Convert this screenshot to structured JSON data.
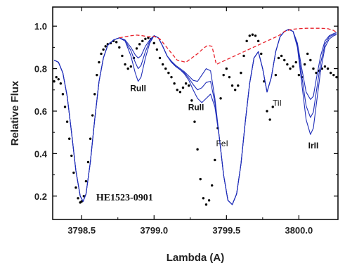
{
  "chart_data": {
    "type": "line",
    "title": "",
    "xlabel": "Lambda (A)",
    "ylabel": "Relative Flux",
    "xlim": [
      3798.3,
      3800.27
    ],
    "ylim": [
      0.09,
      1.09
    ],
    "x_ticks": [
      {
        "value": 3798.5,
        "label": "3798.5"
      },
      {
        "value": 3799.0,
        "label": "3799.0"
      },
      {
        "value": 3799.5,
        "label": "3799.5"
      },
      {
        "value": 3800.0,
        "label": "3800.0"
      }
    ],
    "y_ticks": [
      {
        "value": 0.2,
        "label": "0.2"
      },
      {
        "value": 0.4,
        "label": "0.4"
      },
      {
        "value": 0.6,
        "label": "0.6"
      },
      {
        "value": 0.8,
        "label": "0.8"
      },
      {
        "value": 1.0,
        "label": "1.0"
      }
    ],
    "grid": false,
    "star_label": {
      "text": "HE1523-0901",
      "x": 3798.6,
      "y": 0.18
    },
    "annotations": [
      {
        "text": "RuII",
        "x": 3798.89,
        "y": 0.695,
        "style": "bold"
      },
      {
        "text": "RuII",
        "x": 3799.29,
        "y": 0.605,
        "style": "bold"
      },
      {
        "text": "FeI",
        "x": 3799.47,
        "y": 0.435,
        "style": "plain"
      },
      {
        "text": "TiI",
        "x": 3799.85,
        "y": 0.625,
        "style": "plain"
      },
      {
        "text": "IrII",
        "x": 3800.1,
        "y": 0.425,
        "style": "bold"
      }
    ],
    "series": [
      {
        "style": "dots",
        "color": "#000000",
        "x": [
          3798.31,
          3798.325,
          3798.34,
          3798.355,
          3798.37,
          3798.385,
          3798.4,
          3798.415,
          3798.43,
          3798.445,
          3798.46,
          3798.475,
          3798.49,
          3798.5,
          3798.515,
          3798.53,
          3798.545,
          3798.56,
          3798.575,
          3798.59,
          3798.605,
          3798.62,
          3798.635,
          3798.65,
          3798.665,
          3798.68,
          3798.7,
          3798.72,
          3798.74,
          3798.76,
          3798.78,
          3798.8,
          3798.82,
          3798.84,
          3798.86,
          3798.88,
          3798.9,
          3798.92,
          3798.94,
          3798.96,
          3798.98,
          3799.0,
          3799.02,
          3799.04,
          3799.06,
          3799.08,
          3799.1,
          3799.12,
          3799.14,
          3799.16,
          3799.18,
          3799.2,
          3799.22,
          3799.24,
          3799.26,
          3799.28,
          3799.3,
          3799.32,
          3799.34,
          3799.36,
          3799.38,
          3799.4,
          3799.42,
          3799.44,
          3799.46,
          3799.48,
          3799.5,
          3799.52,
          3799.54,
          3799.56,
          3799.58,
          3799.6,
          3799.62,
          3799.64,
          3799.66,
          3799.68,
          3799.7,
          3799.72,
          3799.74,
          3799.76,
          3799.78,
          3799.8,
          3799.82,
          3799.84,
          3799.86,
          3799.88,
          3799.9,
          3799.92,
          3799.94,
          3799.96,
          3799.98,
          3800.0,
          3800.02,
          3800.04,
          3800.06,
          3800.08,
          3800.1,
          3800.12,
          3800.14,
          3800.16,
          3800.18,
          3800.2,
          3800.22,
          3800.24,
          3800.26
        ],
        "y": [
          0.74,
          0.76,
          0.75,
          0.73,
          0.68,
          0.62,
          0.55,
          0.47,
          0.39,
          0.31,
          0.24,
          0.19,
          0.17,
          0.175,
          0.2,
          0.27,
          0.36,
          0.47,
          0.58,
          0.68,
          0.77,
          0.83,
          0.87,
          0.89,
          0.905,
          0.915,
          0.92,
          0.93,
          0.925,
          0.9,
          0.86,
          0.82,
          0.8,
          0.81,
          0.85,
          0.895,
          0.915,
          0.93,
          0.94,
          0.945,
          0.94,
          0.92,
          0.89,
          0.85,
          0.82,
          0.8,
          0.78,
          0.76,
          0.73,
          0.7,
          0.69,
          0.71,
          0.73,
          0.72,
          0.65,
          0.55,
          0.42,
          0.28,
          0.19,
          0.16,
          0.18,
          0.25,
          0.37,
          0.52,
          0.66,
          0.77,
          0.8,
          0.76,
          0.72,
          0.7,
          0.72,
          0.78,
          0.86,
          0.93,
          0.955,
          0.96,
          0.955,
          0.93,
          0.87,
          0.74,
          0.6,
          0.56,
          0.62,
          0.77,
          0.85,
          0.86,
          0.84,
          0.82,
          0.8,
          0.81,
          0.83,
          0.77,
          0.76,
          0.82,
          0.87,
          0.84,
          0.8,
          0.78,
          0.79,
          0.8,
          0.81,
          0.8,
          0.78,
          0.77,
          0.76
        ]
      },
      {
        "style": "solid",
        "color": "#1f2db8",
        "x": [
          3798.31,
          3798.34,
          3798.37,
          3798.4,
          3798.43,
          3798.46,
          3798.49,
          3798.51,
          3798.53,
          3798.56,
          3798.59,
          3798.62,
          3798.65,
          3798.68,
          3798.72,
          3798.76,
          3798.8,
          3798.84,
          3798.87,
          3798.89,
          3798.91,
          3798.94,
          3798.97,
          3799.0,
          3799.03,
          3799.06,
          3799.09,
          3799.12,
          3799.15,
          3799.18,
          3799.21,
          3799.24,
          3799.27,
          3799.3,
          3799.33,
          3799.36,
          3799.39,
          3799.42,
          3799.45,
          3799.48,
          3799.51,
          3799.54,
          3799.57,
          3799.6,
          3799.63,
          3799.66,
          3799.69,
          3799.72,
          3799.75,
          3799.78,
          3799.81,
          3799.84,
          3799.87,
          3799.9,
          3799.93,
          3799.96,
          3799.99,
          3800.02,
          3800.05,
          3800.08,
          3800.1,
          3800.12,
          3800.15,
          3800.18,
          3800.21,
          3800.24,
          3800.26
        ],
        "y": [
          0.84,
          0.83,
          0.78,
          0.67,
          0.5,
          0.32,
          0.2,
          0.175,
          0.21,
          0.36,
          0.56,
          0.74,
          0.85,
          0.91,
          0.935,
          0.945,
          0.93,
          0.86,
          0.78,
          0.74,
          0.76,
          0.85,
          0.92,
          0.955,
          0.945,
          0.905,
          0.86,
          0.83,
          0.81,
          0.795,
          0.775,
          0.745,
          0.7,
          0.66,
          0.64,
          0.66,
          0.68,
          0.62,
          0.48,
          0.3,
          0.18,
          0.16,
          0.21,
          0.35,
          0.55,
          0.73,
          0.85,
          0.88,
          0.8,
          0.69,
          0.76,
          0.88,
          0.95,
          0.975,
          0.985,
          0.975,
          0.9,
          0.73,
          0.56,
          0.49,
          0.52,
          0.63,
          0.79,
          0.9,
          0.94,
          0.955,
          0.96
        ]
      },
      {
        "style": "solid",
        "color": "#1f2db8",
        "x": [
          3798.31,
          3798.34,
          3798.37,
          3798.4,
          3798.43,
          3798.46,
          3798.49,
          3798.51,
          3798.53,
          3798.56,
          3798.59,
          3798.62,
          3798.65,
          3798.68,
          3798.72,
          3798.76,
          3798.8,
          3798.84,
          3798.87,
          3798.89,
          3798.91,
          3798.94,
          3798.97,
          3799.0,
          3799.03,
          3799.06,
          3799.09,
          3799.12,
          3799.15,
          3799.18,
          3799.21,
          3799.24,
          3799.27,
          3799.3,
          3799.33,
          3799.36,
          3799.39,
          3799.42,
          3799.45,
          3799.48,
          3799.51,
          3799.54,
          3799.57,
          3799.6,
          3799.63,
          3799.66,
          3799.69,
          3799.72,
          3799.75,
          3799.78,
          3799.81,
          3799.84,
          3799.87,
          3799.9,
          3799.93,
          3799.96,
          3799.99,
          3800.02,
          3800.05,
          3800.08,
          3800.1,
          3800.12,
          3800.15,
          3800.18,
          3800.21,
          3800.24,
          3800.26
        ],
        "y": [
          0.84,
          0.83,
          0.78,
          0.67,
          0.5,
          0.32,
          0.2,
          0.175,
          0.21,
          0.36,
          0.56,
          0.74,
          0.85,
          0.91,
          0.935,
          0.945,
          0.935,
          0.9,
          0.865,
          0.85,
          0.86,
          0.905,
          0.935,
          0.955,
          0.945,
          0.905,
          0.86,
          0.835,
          0.815,
          0.8,
          0.785,
          0.765,
          0.745,
          0.74,
          0.77,
          0.8,
          0.79,
          0.66,
          0.48,
          0.3,
          0.18,
          0.16,
          0.21,
          0.35,
          0.55,
          0.73,
          0.85,
          0.88,
          0.8,
          0.69,
          0.76,
          0.88,
          0.95,
          0.975,
          0.985,
          0.975,
          0.92,
          0.8,
          0.69,
          0.655,
          0.67,
          0.75,
          0.86,
          0.93,
          0.955,
          0.965,
          0.97
        ]
      },
      {
        "style": "solid",
        "color": "#1f2db8",
        "x": [
          3798.31,
          3798.34,
          3798.37,
          3798.4,
          3798.43,
          3798.46,
          3798.49,
          3798.51,
          3798.53,
          3798.56,
          3798.59,
          3798.62,
          3798.65,
          3798.68,
          3798.72,
          3798.76,
          3798.8,
          3798.84,
          3798.87,
          3798.89,
          3798.91,
          3798.94,
          3798.97,
          3799.0,
          3799.03,
          3799.06,
          3799.09,
          3799.12,
          3799.15,
          3799.18,
          3799.21,
          3799.24,
          3799.27,
          3799.3,
          3799.33,
          3799.36,
          3799.39,
          3799.42,
          3799.45,
          3799.48,
          3799.51,
          3799.54,
          3799.57,
          3799.6,
          3799.63,
          3799.66,
          3799.69,
          3799.72,
          3799.75,
          3799.78,
          3799.81,
          3799.84,
          3799.87,
          3799.9,
          3799.93,
          3799.96,
          3799.99,
          3800.02,
          3800.05,
          3800.08,
          3800.1,
          3800.12,
          3800.15,
          3800.18,
          3800.21,
          3800.24,
          3800.26
        ],
        "y": [
          0.84,
          0.83,
          0.78,
          0.67,
          0.5,
          0.32,
          0.2,
          0.175,
          0.21,
          0.36,
          0.56,
          0.74,
          0.85,
          0.91,
          0.935,
          0.945,
          0.93,
          0.885,
          0.83,
          0.8,
          0.815,
          0.88,
          0.93,
          0.955,
          0.945,
          0.905,
          0.86,
          0.83,
          0.81,
          0.795,
          0.78,
          0.755,
          0.725,
          0.7,
          0.71,
          0.735,
          0.74,
          0.64,
          0.48,
          0.3,
          0.18,
          0.16,
          0.21,
          0.35,
          0.55,
          0.73,
          0.85,
          0.88,
          0.8,
          0.69,
          0.76,
          0.88,
          0.95,
          0.975,
          0.985,
          0.975,
          0.91,
          0.765,
          0.625,
          0.57,
          0.595,
          0.69,
          0.825,
          0.915,
          0.95,
          0.96,
          0.965
        ]
      },
      {
        "style": "dashed",
        "color": "#e8202a",
        "x": [
          3798.76,
          3798.8,
          3798.84,
          3798.88,
          3798.92,
          3798.96,
          3799.0,
          3799.04,
          3799.1,
          3799.16,
          3799.22,
          3799.26,
          3799.3,
          3799.34,
          3799.37,
          3799.4,
          3799.43,
          3799.86,
          3799.9,
          3799.95,
          3800.0,
          3800.05,
          3800.1,
          3800.15,
          3800.2,
          3800.24,
          3800.26
        ],
        "y": [
          0.945,
          0.95,
          0.955,
          0.958,
          0.955,
          0.95,
          0.952,
          0.94,
          0.89,
          0.84,
          0.83,
          0.85,
          0.87,
          0.895,
          0.91,
          0.905,
          0.82,
          0.955,
          0.975,
          0.985,
          0.988,
          0.99,
          0.99,
          0.99,
          0.988,
          0.98,
          0.97
        ]
      }
    ]
  }
}
